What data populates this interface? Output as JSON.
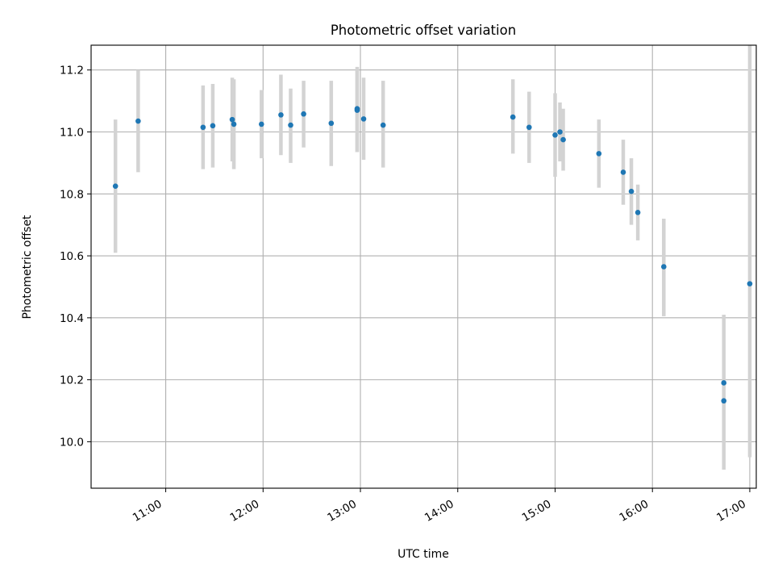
{
  "chart_data": {
    "type": "scatter",
    "title": "Photometric offset variation",
    "xlabel": "UTC time",
    "ylabel": "Photometric offset",
    "xlim": [
      "10:14",
      "17:04"
    ],
    "ylim": [
      9.85,
      11.28
    ],
    "x_ticks": [
      "11:00",
      "12:00",
      "13:00",
      "14:00",
      "15:00",
      "16:00",
      "17:00"
    ],
    "y_ticks": [
      10.0,
      10.2,
      10.4,
      10.6,
      10.8,
      11.0,
      11.2
    ],
    "y_tick_labels": [
      "10.0",
      "10.2",
      "10.4",
      "10.6",
      "10.8",
      "11.0",
      "11.2"
    ],
    "grid": true,
    "marker_color": "#1f77b4",
    "errorbar_color": "#d3d3d3",
    "points": [
      {
        "time": "10:29",
        "y": 10.825,
        "ylo": 10.61,
        "yhi": 11.04
      },
      {
        "time": "10:43",
        "y": 11.035,
        "ylo": 10.87,
        "yhi": 11.2
      },
      {
        "time": "11:23",
        "y": 11.015,
        "ylo": 10.88,
        "yhi": 11.15
      },
      {
        "time": "11:29",
        "y": 11.02,
        "ylo": 10.885,
        "yhi": 11.155
      },
      {
        "time": "11:41",
        "y": 11.04,
        "ylo": 10.905,
        "yhi": 11.175
      },
      {
        "time": "11:42",
        "y": 11.025,
        "ylo": 10.88,
        "yhi": 11.17
      },
      {
        "time": "11:59",
        "y": 11.025,
        "ylo": 10.915,
        "yhi": 11.135
      },
      {
        "time": "12:11",
        "y": 11.055,
        "ylo": 10.925,
        "yhi": 11.185
      },
      {
        "time": "12:17",
        "y": 11.022,
        "ylo": 10.9,
        "yhi": 11.14
      },
      {
        "time": "12:25",
        "y": 11.058,
        "ylo": 10.95,
        "yhi": 11.165
      },
      {
        "time": "12:42",
        "y": 11.028,
        "ylo": 10.89,
        "yhi": 11.165
      },
      {
        "time": "12:58",
        "y": 11.07,
        "ylo": 10.935,
        "yhi": 11.205
      },
      {
        "time": "12:58",
        "y": 11.075,
        "ylo": 10.935,
        "yhi": 11.21
      },
      {
        "time": "13:02",
        "y": 11.042,
        "ylo": 10.91,
        "yhi": 11.175
      },
      {
        "time": "13:14",
        "y": 11.022,
        "ylo": 10.885,
        "yhi": 11.165
      },
      {
        "time": "14:34",
        "y": 11.048,
        "ylo": 10.93,
        "yhi": 11.17
      },
      {
        "time": "14:44",
        "y": 11.015,
        "ylo": 10.9,
        "yhi": 11.13
      },
      {
        "time": "15:00",
        "y": 10.99,
        "ylo": 10.855,
        "yhi": 11.125
      },
      {
        "time": "15:03",
        "y": 11.0,
        "ylo": 10.905,
        "yhi": 11.095
      },
      {
        "time": "15:05",
        "y": 10.975,
        "ylo": 10.875,
        "yhi": 11.075
      },
      {
        "time": "15:27",
        "y": 10.93,
        "ylo": 10.82,
        "yhi": 11.04
      },
      {
        "time": "15:42",
        "y": 10.87,
        "ylo": 10.765,
        "yhi": 10.975
      },
      {
        "time": "15:47",
        "y": 10.808,
        "ylo": 10.7,
        "yhi": 10.915
      },
      {
        "time": "15:51",
        "y": 10.74,
        "ylo": 10.65,
        "yhi": 10.83
      },
      {
        "time": "16:07",
        "y": 10.565,
        "ylo": 10.405,
        "yhi": 10.72
      },
      {
        "time": "16:44",
        "y": 10.19,
        "ylo": 9.97,
        "yhi": 10.41
      },
      {
        "time": "16:44",
        "y": 10.132,
        "ylo": 9.91,
        "yhi": 10.355
      },
      {
        "time": "17:00",
        "y": 10.51,
        "ylo": 9.95,
        "yhi": 11.28
      }
    ]
  }
}
